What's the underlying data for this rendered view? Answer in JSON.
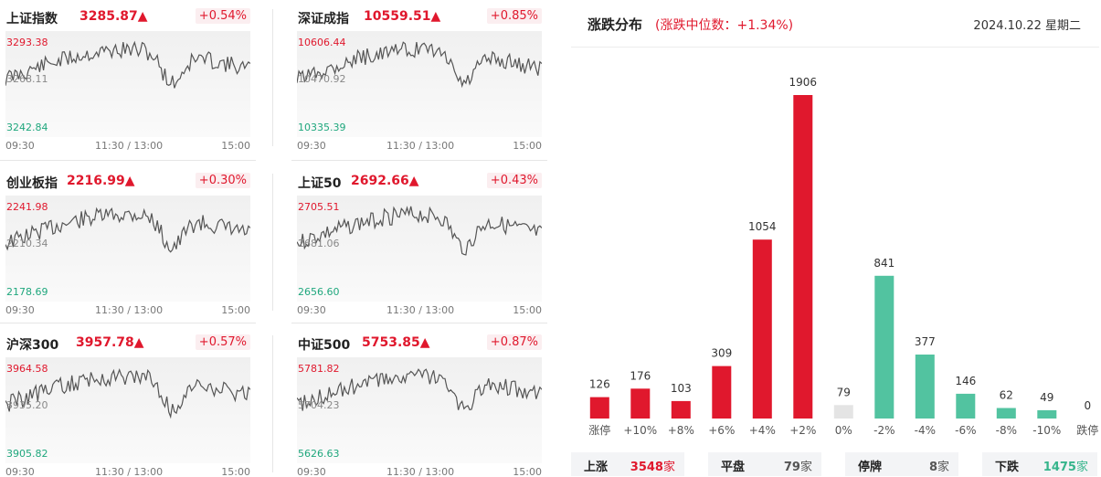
{
  "colors": {
    "up": "#e0182d",
    "down": "#52c3a0",
    "flat": "#e4e4e4",
    "line": "#555555"
  },
  "indices": [
    {
      "name": "上证指数",
      "value": "3285.87",
      "arrow": "▲",
      "change": "+0.54%",
      "high": "3293.38",
      "mid": "3268.11",
      "low": "3242.84",
      "time_start": "09:30",
      "time_mid": "11:30 / 13:00",
      "time_end": "15:00",
      "seed": 11
    },
    {
      "name": "深证成指",
      "value": "10559.51",
      "arrow": "▲",
      "change": "+0.85%",
      "high": "10606.44",
      "mid": "10470.92",
      "low": "10335.39",
      "time_start": "09:30",
      "time_mid": "11:30 / 13:00",
      "time_end": "15:00",
      "seed": 12
    },
    {
      "name": "创业板指",
      "value": "2216.99",
      "arrow": "▲",
      "change": "+0.30%",
      "high": "2241.98",
      "mid": "2210.34",
      "low": "2178.69",
      "time_start": "09:30",
      "time_mid": "11:30 / 13:00",
      "time_end": "15:00",
      "seed": 13
    },
    {
      "name": "上证50",
      "value": "2692.66",
      "arrow": "▲",
      "change": "+0.43%",
      "high": "2705.51",
      "mid": "2681.06",
      "low": "2656.60",
      "time_start": "09:30",
      "time_mid": "11:30 / 13:00",
      "time_end": "15:00",
      "seed": 14
    },
    {
      "name": "沪深300",
      "value": "3957.78",
      "arrow": "▲",
      "change": "+0.57%",
      "high": "3964.58",
      "mid": "3935.20",
      "low": "3905.82",
      "time_start": "09:30",
      "time_mid": "11:30 / 13:00",
      "time_end": "15:00",
      "seed": 15
    },
    {
      "name": "中证500",
      "value": "5753.85",
      "arrow": "▲",
      "change": "+0.87%",
      "high": "5781.82",
      "mid": "5704.23",
      "low": "5626.63",
      "time_start": "09:30",
      "time_mid": "11:30 / 13:00",
      "time_end": "15:00",
      "seed": 16
    }
  ],
  "distribution": {
    "title": "涨跌分布",
    "subtitle": "(涨跌中位数：+1.34%)",
    "date": "2024.10.22 星期二"
  },
  "chart_data": {
    "type": "bar",
    "categories": [
      "涨停",
      "+10%",
      "+8%",
      "+6%",
      "+4%",
      "+2%",
      "0%",
      "-2%",
      "-4%",
      "-6%",
      "-8%",
      "-10%",
      "跌停"
    ],
    "values": [
      126,
      176,
      103,
      309,
      1054,
      1906,
      79,
      841,
      377,
      146,
      62,
      49,
      0
    ],
    "bar_kind": [
      "up",
      "up",
      "up",
      "up",
      "up",
      "up",
      "flat",
      "down",
      "down",
      "down",
      "down",
      "down",
      "down"
    ],
    "ylim": [
      0,
      1906
    ]
  },
  "summary": [
    {
      "label": "上涨",
      "value": "3548",
      "unit": "家",
      "color": "#e0182d"
    },
    {
      "label": "平盘",
      "value": "79",
      "unit": "家",
      "color": "#555555"
    },
    {
      "label": "停牌",
      "value": "8",
      "unit": "家",
      "color": "#555555"
    },
    {
      "label": "下跌",
      "value": "1475",
      "unit": "家",
      "color": "#36b58c"
    }
  ]
}
